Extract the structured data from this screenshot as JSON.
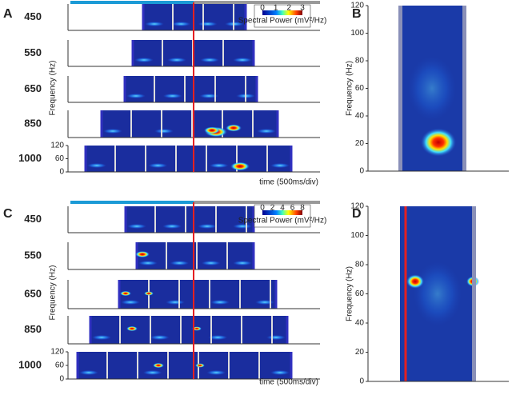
{
  "panel_labels": [
    "A",
    "B",
    "C",
    "D"
  ],
  "top": {
    "rows": [
      "450",
      "550",
      "650",
      "850",
      "1000"
    ],
    "ylabel": "Frequency (Hz)",
    "xlabel": "time (500ms/div)",
    "colorbar": {
      "ticks": [
        0,
        1,
        2,
        3
      ],
      "label": "Spectral Power (mV²/Hz)"
    },
    "row_axis": {
      "ylim": [
        0,
        120
      ],
      "yticks": [
        0,
        60,
        120
      ]
    }
  },
  "bottom": {
    "rows": [
      "450",
      "550",
      "650",
      "850",
      "1000"
    ],
    "ylabel": "Frequency (Hz)",
    "xlabel": "time (500ms/div)",
    "colorbar": {
      "ticks": [
        0,
        2,
        4,
        6,
        8
      ],
      "label": "Spectral Power (mV²/Hz)"
    },
    "row_axis": {
      "ylim": [
        0,
        120
      ],
      "yticks": [
        0,
        60,
        120
      ]
    }
  },
  "panel_b": {
    "ylabel": "Frequency (Hz)",
    "ylim": [
      0,
      120
    ],
    "yticks": [
      0,
      20,
      40,
      60,
      80,
      100,
      120
    ]
  },
  "panel_d": {
    "ylabel": "Frequency (Hz)",
    "ylim": [
      0,
      120
    ],
    "yticks": [
      0,
      20,
      40,
      60,
      80,
      100,
      120
    ]
  }
}
